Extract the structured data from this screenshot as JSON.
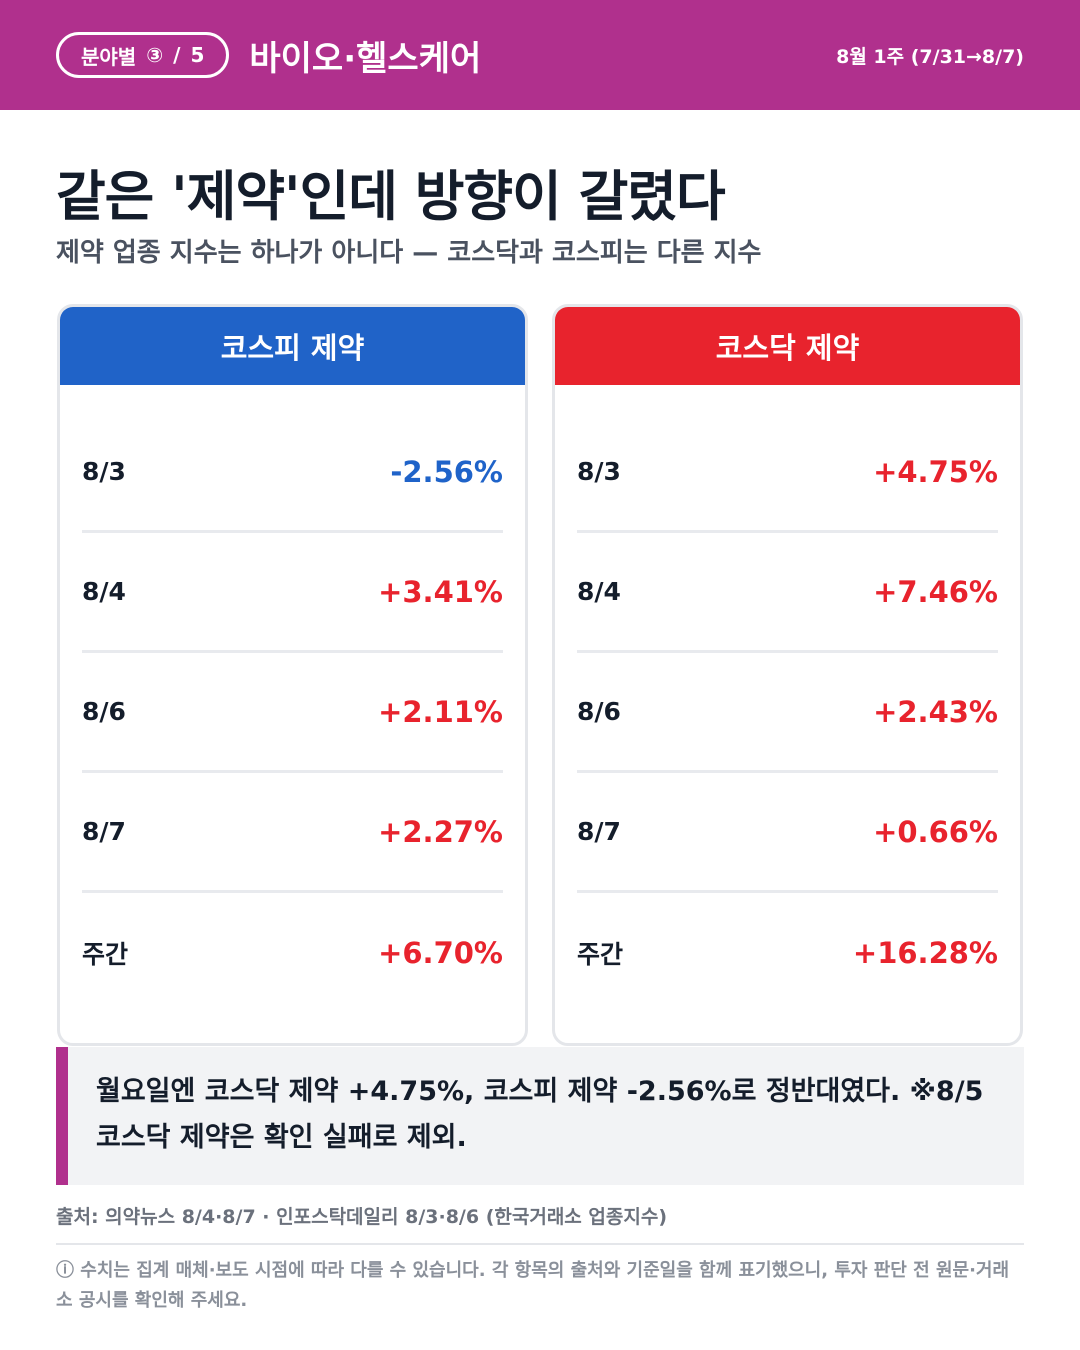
{
  "header": {
    "series_label": "분야별",
    "series_index": "③",
    "series_sep": "/",
    "series_total": "5",
    "category": "바이오·헬스케어",
    "week": "8월 1주 (7/31→8/7)"
  },
  "title": "같은 '제약'인데 방향이 갈렸다",
  "subtitle": "제약 업종 지수는 하나가 아니다 — 코스닥과 코스피는 다른 지수",
  "cards": [
    {
      "title": "코스피 제약",
      "accent": "#2063c8",
      "rows": [
        {
          "date": "8/3",
          "value": "-2.56%"
        },
        {
          "date": "8/4",
          "value": "+3.41%"
        },
        {
          "date": "8/6",
          "value": "+2.11%"
        },
        {
          "date": "8/7",
          "value": "+2.27%"
        },
        {
          "date": "주간",
          "value": "+6.70%"
        }
      ]
    },
    {
      "title": "코스닥 제약",
      "accent": "#e8232d",
      "rows": [
        {
          "date": "8/3",
          "value": "+4.75%"
        },
        {
          "date": "8/4",
          "value": "+7.46%"
        },
        {
          "date": "8/6",
          "value": "+2.43%"
        },
        {
          "date": "8/7",
          "value": "+0.66%"
        },
        {
          "date": "주간",
          "value": "+16.28%"
        }
      ]
    }
  ],
  "note": "월요일엔 코스닥 제약 +4.75%, 코스피 제약 -2.56%로 정반대였다. ※8/5 코스닥 제약은 확인 실패로 제외.",
  "source": "출처: 의약뉴스 8/4·8/7 · 인포스탁데일리 8/3·8/6 (한국거래소 업종지수)",
  "disclaimer": "ⓘ 수치는 집계 매체·보도 시점에 따라 다를 수 있습니다. 각 항목의 출처와 기준일을 함께 표기했으니, 투자 판단 전 원문·거래소 공시를 확인해 주세요.",
  "colors": {
    "brand": "#b0308d",
    "up": "#e8232d",
    "down": "#1f63c9"
  }
}
